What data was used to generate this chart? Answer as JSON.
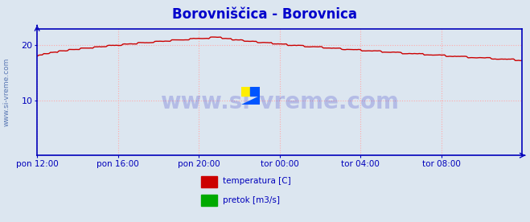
{
  "title": "Borovniščica - Borovnica",
  "title_color": "#0000cc",
  "title_fontsize": 12,
  "bg_color": "#dce6f0",
  "plot_bg_color": "#dce6f0",
  "grid_color": "#ffaaaa",
  "grid_style": ":",
  "axis_color": "#0000bb",
  "tick_color": "#0000bb",
  "tick_label_color": "#0000bb",
  "watermark": "www.si-vreme.com",
  "watermark_color": "#0000bb",
  "watermark_alpha": 0.18,
  "watermark_fontsize": 20,
  "legend": [
    {
      "label": "temperatura [C]",
      "color": "#cc0000"
    },
    {
      "label": "pretok [m3/s]",
      "color": "#00aa00"
    }
  ],
  "side_label": "www.si-vreme.com",
  "side_label_color": "#4466aa",
  "side_label_fontsize": 6.5,
  "xticklabels": [
    "pon 12:00",
    "pon 16:00",
    "pon 20:00",
    "tor 00:00",
    "tor 04:00",
    "tor 08:00"
  ],
  "xtick_positions": [
    0,
    48,
    96,
    144,
    192,
    240
  ],
  "yticks": [
    10,
    20
  ],
  "ylim": [
    0,
    23
  ],
  "xlim": [
    0,
    288
  ],
  "line_color": "#cc0000",
  "line_width": 1.0,
  "n_points": 289,
  "peak_x": 108,
  "start_temp": 18.0,
  "peak_temp": 21.5,
  "end_temp": 17.3
}
